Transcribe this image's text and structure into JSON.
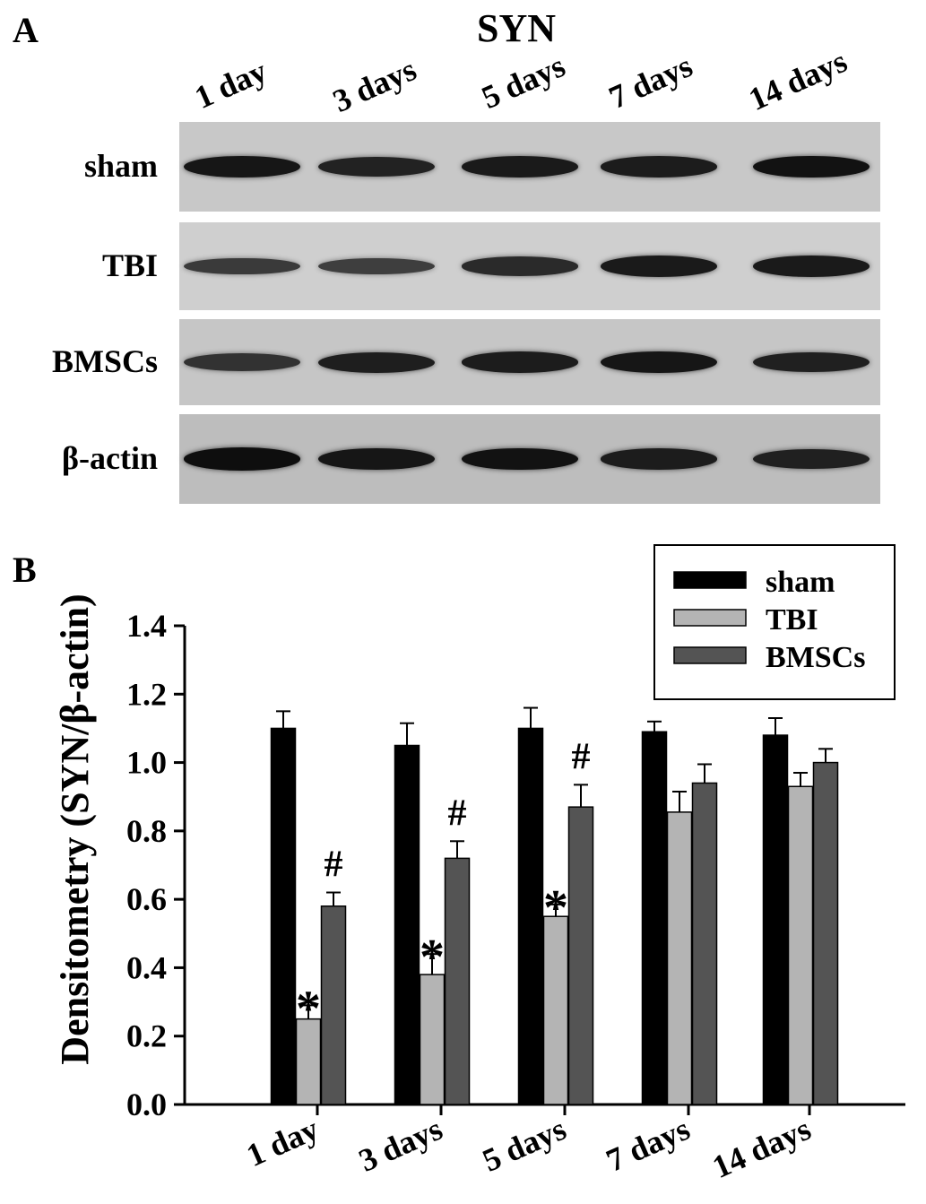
{
  "panel_a": {
    "label": "A",
    "title": "SYN",
    "timepoints": [
      "1 day",
      "3 days",
      "5 days",
      "7 days",
      "14 days"
    ],
    "rows": [
      {
        "label": "sham",
        "background": "#c8c8c8",
        "intensity": [
          0.85,
          0.7,
          0.8,
          0.78,
          0.9
        ]
      },
      {
        "label": "TBI",
        "background": "#cfcfcf",
        "intensity": [
          0.4,
          0.35,
          0.6,
          0.8,
          0.8
        ]
      },
      {
        "label": "BMSCs",
        "background": "#c6c6c6",
        "intensity": [
          0.5,
          0.75,
          0.78,
          0.85,
          0.72
        ]
      },
      {
        "label": "β-actin",
        "background": "#bdbdbd",
        "intensity": [
          0.95,
          0.85,
          0.9,
          0.78,
          0.72
        ]
      }
    ]
  },
  "panel_b": {
    "label": "B"
  },
  "chart_data": {
    "type": "bar",
    "title": "",
    "xlabel": "",
    "ylabel": "Densitometry (SYN/β-actin)",
    "categories": [
      "1 day",
      "3 days",
      "5 days",
      "7 days",
      "14 days"
    ],
    "ylim": [
      0.0,
      1.4
    ],
    "yticks": [
      "0.0",
      "0.2",
      "0.4",
      "0.6",
      "0.8",
      "1.0",
      "1.2",
      "1.4"
    ],
    "grid": false,
    "legend_position": "top-right",
    "series": [
      {
        "name": "sham",
        "color": "#000000",
        "values": [
          1.1,
          1.05,
          1.1,
          1.09,
          1.08
        ],
        "errors": [
          0.05,
          0.065,
          0.06,
          0.03,
          0.05
        ]
      },
      {
        "name": "TBI",
        "color": "#b4b4b4",
        "values": [
          0.25,
          0.38,
          0.55,
          0.855,
          0.93
        ],
        "errors": [
          0.04,
          0.06,
          0.035,
          0.06,
          0.04
        ]
      },
      {
        "name": "BMSCs",
        "color": "#545454",
        "values": [
          0.58,
          0.72,
          0.87,
          0.94,
          1.0
        ],
        "errors": [
          0.04,
          0.05,
          0.065,
          0.055,
          0.04
        ]
      }
    ],
    "annotations": [
      {
        "text": "*",
        "series": "TBI",
        "category": "1 day"
      },
      {
        "text": "*",
        "series": "TBI",
        "category": "3 days"
      },
      {
        "text": "*",
        "series": "TBI",
        "category": "5 days"
      },
      {
        "text": "#",
        "series": "BMSCs",
        "category": "1 day"
      },
      {
        "text": "#",
        "series": "BMSCs",
        "category": "3 days"
      },
      {
        "text": "#",
        "series": "BMSCs",
        "category": "5 days"
      }
    ]
  }
}
